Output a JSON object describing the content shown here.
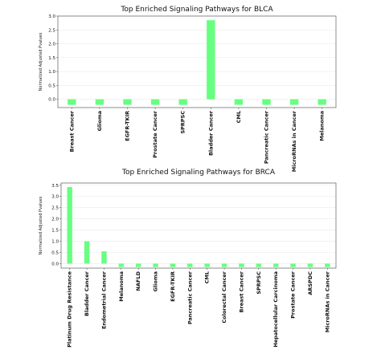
{
  "chart_data": [
    {
      "type": "bar",
      "title": "Top Enriched Signaling Pathways for BLCA",
      "ylabel": "Normalized Adjusted Pvalues",
      "xlabel": "",
      "ylim": [
        -0.3,
        3.0
      ],
      "yticks": [
        0.0,
        0.5,
        1.0,
        1.5,
        2.0,
        2.5,
        3.0
      ],
      "ytick_labels": [
        "0.0",
        "0.5",
        "1.0",
        "1.5",
        "2.0",
        "2.5",
        "3.0"
      ],
      "grid": true,
      "bar_color": "#66ff80",
      "categories": [
        "Breast Cancer",
        "Glioma",
        "EGFR-TKIR",
        "Prostate Cancer",
        "SPRPSC",
        "Bladder Cancer",
        "CML",
        "Pancreatic Cancer",
        "MicroRNAs in Cancer",
        "Melanoma"
      ],
      "values": [
        -0.2,
        -0.2,
        -0.2,
        -0.2,
        -0.2,
        2.85,
        -0.2,
        -0.2,
        -0.2,
        -0.2
      ]
    },
    {
      "type": "bar",
      "title": "Top Enriched Signaling Pathways for BRCA",
      "ylabel": "Normalized Adjusted Pvalues",
      "xlabel": "",
      "ylim": [
        -0.2,
        3.6
      ],
      "yticks": [
        0.0,
        0.5,
        1.0,
        1.5,
        2.0,
        2.5,
        3.0,
        3.5
      ],
      "ytick_labels": [
        "0.0",
        "0.5",
        "1.0",
        "1.5",
        "2.0",
        "2.5",
        "3.0",
        "3.5"
      ],
      "grid": true,
      "bar_color": "#66ff80",
      "categories": [
        "Platinum Drug Resistance",
        "Bladder Cancer",
        "Endometrial Cancer",
        "Melanoma",
        "NAFLD",
        "Glioma",
        "EGFR-TKIR",
        "Pancreatic Cancer",
        "CML",
        "Colorectal Cancer",
        "Breast Cancer",
        "SPRPSC",
        "Hepatocellular Carcinoma",
        "Prostate Cancer",
        "ARSPDC",
        "MicroRNAs in Cancer"
      ],
      "values": [
        3.42,
        1.0,
        0.55,
        -0.15,
        -0.15,
        -0.15,
        -0.15,
        -0.15,
        -0.15,
        -0.15,
        -0.15,
        -0.15,
        -0.15,
        -0.15,
        -0.15,
        -0.15
      ]
    }
  ]
}
